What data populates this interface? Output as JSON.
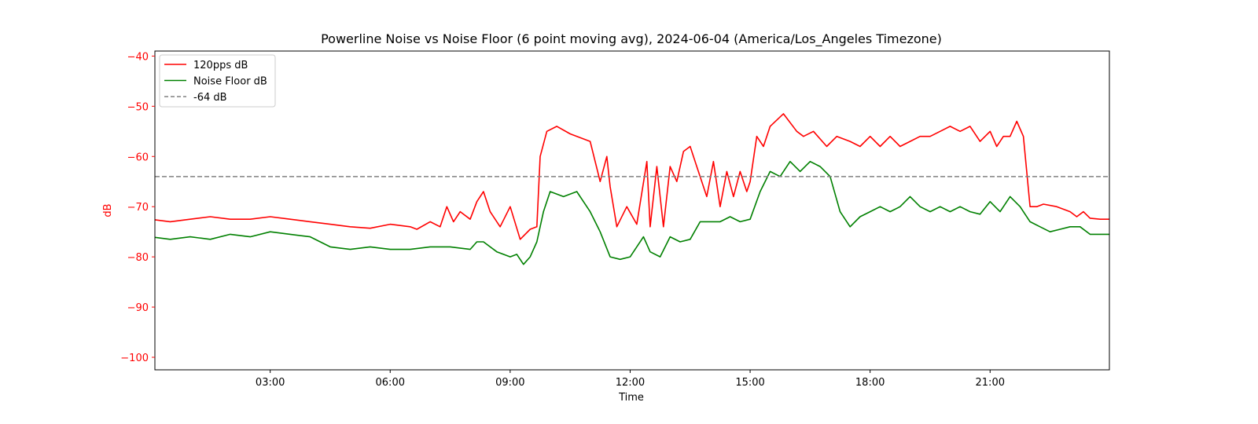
{
  "chart_data": {
    "type": "line",
    "title": "Powerline Noise vs Noise Floor (6 point moving avg), 2024-06-04 (America/Los_Angeles Timezone)",
    "xlabel": "Time",
    "ylabel": "dB",
    "xlim": [
      "00:07",
      "23:59"
    ],
    "ylim": [
      -102.5,
      -39
    ],
    "x_ticks": [
      "03:00",
      "06:00",
      "09:00",
      "12:00",
      "15:00",
      "18:00",
      "21:00"
    ],
    "y_ticks": [
      -40,
      -50,
      -60,
      -70,
      -80,
      -90,
      -100
    ],
    "grid": false,
    "legend_position": "upper left",
    "colors": {
      "pps": "#ff0000",
      "floor": "#008000",
      "threshold": "#808080",
      "ylabel_color": "#ff0000"
    },
    "threshold": {
      "name": "-64 dB",
      "value": -64,
      "style": "dashed"
    },
    "series": [
      {
        "name": "120pps dB",
        "x": [
          "00:00",
          "00:30",
          "01:00",
          "01:30",
          "02:00",
          "02:30",
          "03:00",
          "03:30",
          "04:00",
          "04:30",
          "05:00",
          "05:30",
          "06:00",
          "06:30",
          "06:40",
          "07:00",
          "07:15",
          "07:25",
          "07:35",
          "07:45",
          "08:00",
          "08:10",
          "08:20",
          "08:30",
          "08:45",
          "09:00",
          "09:15",
          "09:30",
          "09:40",
          "09:45",
          "09:55",
          "10:10",
          "10:30",
          "11:00",
          "11:15",
          "11:25",
          "11:30",
          "11:40",
          "11:55",
          "12:10",
          "12:25",
          "12:30",
          "12:40",
          "12:50",
          "13:00",
          "13:10",
          "13:20",
          "13:30",
          "13:40",
          "13:55",
          "14:05",
          "14:15",
          "14:25",
          "14:35",
          "14:45",
          "14:55",
          "15:00",
          "15:10",
          "15:20",
          "15:30",
          "15:50",
          "16:10",
          "16:20",
          "16:35",
          "16:55",
          "17:10",
          "17:30",
          "17:45",
          "18:00",
          "18:15",
          "18:30",
          "18:45",
          "19:00",
          "19:15",
          "19:30",
          "19:45",
          "20:00",
          "20:15",
          "20:30",
          "20:45",
          "21:00",
          "21:10",
          "21:20",
          "21:30",
          "21:40",
          "21:50",
          "22:00",
          "22:10",
          "22:20",
          "22:40",
          "23:00",
          "23:10",
          "23:20",
          "23:30",
          "23:45",
          "23:59"
        ],
        "values": [
          -72.5,
          -73,
          -72.5,
          -72,
          -72.5,
          -72.5,
          -72,
          -72.5,
          -73,
          -73.5,
          -74,
          -74.3,
          -73.5,
          -74,
          -74.5,
          -73,
          -74,
          -70,
          -73,
          -71,
          -72.5,
          -69,
          -67,
          -71,
          -74,
          -70,
          -76.5,
          -74.5,
          -74,
          -60,
          -55,
          -54,
          -55.5,
          -57,
          -65,
          -60,
          -66,
          -74,
          -70,
          -73.5,
          -61,
          -74,
          -62,
          -74,
          -62,
          -65,
          -59,
          -58,
          -62,
          -68,
          -61,
          -70,
          -63,
          -68,
          -63,
          -67,
          -65,
          -56,
          -58,
          -54,
          -51.5,
          -55,
          -56,
          -55,
          -58,
          -56,
          -57,
          -58,
          -56,
          -58,
          -56,
          -58,
          -57,
          -56,
          -56,
          -55,
          -54,
          -55,
          -54,
          -57,
          -55,
          -58,
          -56,
          -56,
          -53,
          -56,
          -70,
          -70,
          -69.5,
          -70,
          -71,
          -72,
          -71,
          -72.3,
          -72.5,
          -72.5
        ]
      },
      {
        "name": "Noise Floor dB",
        "x": [
          "00:00",
          "00:30",
          "01:00",
          "01:30",
          "02:00",
          "02:30",
          "03:00",
          "03:30",
          "04:00",
          "04:30",
          "05:00",
          "05:30",
          "06:00",
          "06:30",
          "07:00",
          "07:30",
          "08:00",
          "08:10",
          "08:20",
          "08:40",
          "09:00",
          "09:10",
          "09:20",
          "09:30",
          "09:40",
          "09:50",
          "10:00",
          "10:20",
          "10:40",
          "11:00",
          "11:15",
          "11:30",
          "11:45",
          "12:00",
          "12:20",
          "12:30",
          "12:45",
          "13:00",
          "13:15",
          "13:30",
          "13:45",
          "14:00",
          "14:15",
          "14:30",
          "14:45",
          "15:00",
          "15:15",
          "15:30",
          "15:45",
          "16:00",
          "16:15",
          "16:30",
          "16:45",
          "17:00",
          "17:15",
          "17:30",
          "17:45",
          "18:00",
          "18:15",
          "18:30",
          "18:45",
          "19:00",
          "19:15",
          "19:30",
          "19:45",
          "20:00",
          "20:15",
          "20:30",
          "20:45",
          "21:00",
          "21:15",
          "21:30",
          "21:45",
          "22:00",
          "22:15",
          "22:30",
          "22:45",
          "23:00",
          "23:15",
          "23:30",
          "23:45",
          "23:59"
        ],
        "values": [
          -76,
          -76.5,
          -76,
          -76.5,
          -75.5,
          -76,
          -75,
          -75.5,
          -76,
          -78,
          -78.5,
          -78,
          -78.5,
          -78.5,
          -78,
          -78,
          -78.5,
          -77,
          -77,
          -79,
          -80,
          -79.5,
          -81.5,
          -80,
          -77,
          -71,
          -67,
          -68,
          -67,
          -71,
          -75,
          -80,
          -80.5,
          -80,
          -76,
          -79,
          -80,
          -76,
          -77,
          -76.5,
          -73,
          -73,
          -73,
          -72,
          -73,
          -72.5,
          -67,
          -63,
          -64,
          -61,
          -63,
          -61,
          -62,
          -64,
          -71,
          -74,
          -72,
          -71,
          -70,
          -71,
          -70,
          -68,
          -70,
          -71,
          -70,
          -71,
          -70,
          -71,
          -71.5,
          -69,
          -71,
          -68,
          -70,
          -73,
          -74,
          -75,
          -74.5,
          -74,
          -74,
          -75.5,
          -75.5,
          -75.5
        ]
      }
    ]
  }
}
